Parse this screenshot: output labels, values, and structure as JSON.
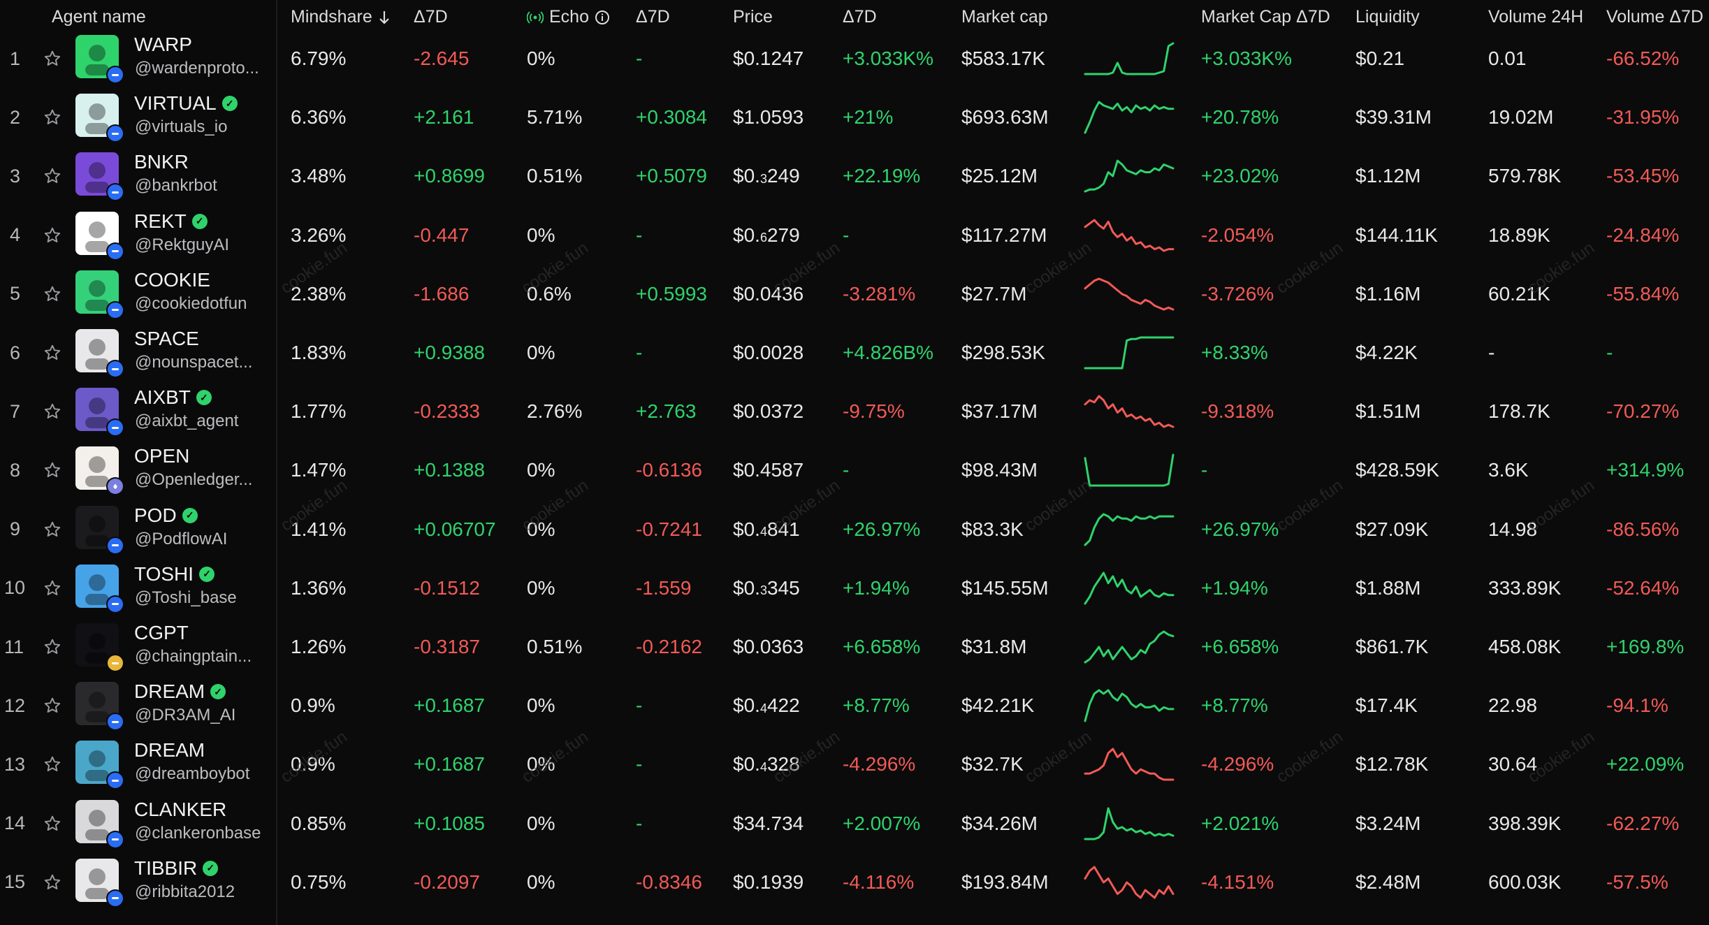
{
  "columns": {
    "agent_name": "Agent name",
    "mindshare": "Mindshare",
    "mindshare_d7": "Δ7D",
    "echo": "Echo",
    "echo_d7": "Δ7D",
    "price": "Price",
    "price_d7": "Δ7D",
    "market_cap": "Market cap",
    "market_cap_d7": "Market Cap Δ7D",
    "liquidity": "Liquidity",
    "volume_24h": "Volume 24H",
    "volume_d7": "Volume Δ7D"
  },
  "watermark_text": "cookie.fun",
  "colors": {
    "positive": "#2fd36b",
    "negative": "#f25a55",
    "chain_base": "#2a6df4"
  },
  "rows": [
    {
      "rank": "1",
      "name": "WARP",
      "handle": "@wardenproto...",
      "verified": false,
      "chain": "base",
      "mindshare": "6.79%",
      "mindshare_d7": "-2.645",
      "echo": "0%",
      "echo_d7": "-",
      "price": "$0.1247",
      "price_sub": "",
      "price_rest": "",
      "price_d7": "+3.033K%",
      "mcap": "$583.17K",
      "spark_trend": "up",
      "spark": [
        2,
        2,
        2,
        2,
        2,
        2,
        3,
        10,
        3,
        2,
        2,
        2,
        2,
        2,
        2,
        2,
        3,
        4,
        22,
        24
      ],
      "mcap_d7": "+3.033K%",
      "liquidity": "$0.21",
      "volume": "0.01",
      "volume_d7": "-66.52%"
    },
    {
      "rank": "2",
      "name": "VIRTUAL",
      "handle": "@virtuals_io",
      "verified": true,
      "chain": "base",
      "mindshare": "6.36%",
      "mindshare_d7": "+2.161",
      "echo": "5.71%",
      "echo_d7": "+0.3084",
      "price": "$1.0593",
      "price_sub": "",
      "price_rest": "",
      "price_d7": "+21%",
      "mcap": "$693.63M",
      "spark_trend": "up",
      "spark": [
        2,
        8,
        15,
        20,
        18,
        17,
        16,
        19,
        15,
        17,
        14,
        18,
        16,
        17,
        15,
        18,
        16,
        17,
        16,
        16
      ],
      "mcap_d7": "+20.78%",
      "liquidity": "$39.31M",
      "volume": "19.02M",
      "volume_d7": "-31.95%"
    },
    {
      "rank": "3",
      "name": "BNKR",
      "handle": "@bankrbot",
      "verified": false,
      "chain": "base",
      "mindshare": "3.48%",
      "mindshare_d7": "+0.8699",
      "echo": "0.51%",
      "echo_d7": "+0.5079",
      "price": "$0.",
      "price_sub": "3",
      "price_rest": "249",
      "price_d7": "+22.19%",
      "mcap": "$25.12M",
      "spark_trend": "up",
      "spark": [
        2,
        3,
        3,
        4,
        6,
        12,
        10,
        18,
        16,
        13,
        12,
        11,
        13,
        12,
        12,
        14,
        13,
        16,
        15,
        14
      ],
      "mcap_d7": "+23.02%",
      "liquidity": "$1.12M",
      "volume": "579.78K",
      "volume_d7": "-53.45%"
    },
    {
      "rank": "4",
      "name": "REKT",
      "handle": "@RektguyAI",
      "verified": true,
      "chain": "base",
      "mindshare": "3.26%",
      "mindshare_d7": "-0.447",
      "echo": "0%",
      "echo_d7": "-",
      "price": "$0.",
      "price_sub": "6",
      "price_rest": "279",
      "price_d7": "-",
      "mcap": "$117.27M",
      "spark_trend": "down",
      "spark": [
        18,
        20,
        22,
        19,
        17,
        21,
        15,
        12,
        14,
        10,
        12,
        8,
        9,
        6,
        7,
        5,
        6,
        4,
        5,
        5
      ],
      "mcap_d7": "-2.054%",
      "liquidity": "$144.11K",
      "volume": "18.89K",
      "volume_d7": "-24.84%"
    },
    {
      "rank": "5",
      "name": "COOKIE",
      "handle": "@cookiedotfun",
      "verified": false,
      "chain": "base",
      "mindshare": "2.38%",
      "mindshare_d7": "-1.686",
      "echo": "0.6%",
      "echo_d7": "+0.5993",
      "price": "$0.0436",
      "price_sub": "",
      "price_rest": "",
      "price_d7": "-3.281%",
      "mcap": "$27.7M",
      "spark_trend": "down",
      "spark": [
        16,
        18,
        20,
        21,
        20,
        19,
        17,
        15,
        13,
        12,
        10,
        9,
        8,
        10,
        9,
        7,
        6,
        5,
        6,
        5
      ],
      "mcap_d7": "-3.726%",
      "liquidity": "$1.16M",
      "volume": "60.21K",
      "volume_d7": "-55.84%"
    },
    {
      "rank": "6",
      "name": "SPACE",
      "handle": "@nounspacet...",
      "verified": false,
      "chain": "base",
      "mindshare": "1.83%",
      "mindshare_d7": "+0.9388",
      "echo": "0%",
      "echo_d7": "-",
      "price": "$0.0028",
      "price_sub": "",
      "price_rest": "",
      "price_d7": "+4.826B%",
      "mcap": "$298.53K",
      "spark_trend": "up",
      "spark": [
        2,
        2,
        2,
        2,
        2,
        2,
        2,
        2,
        2,
        20,
        21,
        21,
        22,
        22,
        22,
        22,
        22,
        22,
        22,
        22
      ],
      "mcap_d7": "+8.33%",
      "liquidity": "$4.22K",
      "volume": "-",
      "volume_d7": "-"
    },
    {
      "rank": "7",
      "name": "AIXBT",
      "handle": "@aixbt_agent",
      "verified": true,
      "chain": "base",
      "mindshare": "1.77%",
      "mindshare_d7": "-0.2333",
      "echo": "2.76%",
      "echo_d7": "+2.763",
      "price": "$0.0372",
      "price_sub": "",
      "price_rest": "",
      "price_d7": "-9.75%",
      "mcap": "$37.17M",
      "spark_trend": "down",
      "spark": [
        16,
        18,
        17,
        20,
        18,
        14,
        16,
        12,
        14,
        10,
        11,
        9,
        10,
        8,
        9,
        6,
        7,
        5,
        6,
        5
      ],
      "mcap_d7": "-9.318%",
      "liquidity": "$1.51M",
      "volume": "178.7K",
      "volume_d7": "-70.27%"
    },
    {
      "rank": "8",
      "name": "OPEN",
      "handle": "@Openledger...",
      "verified": false,
      "chain": "eth",
      "mindshare": "1.47%",
      "mindshare_d7": "+0.1388",
      "echo": "0%",
      "echo_d7": "-0.6136",
      "price": "$0.4587",
      "price_sub": "",
      "price_rest": "",
      "price_d7": "-",
      "mcap": "$98.43M",
      "spark_trend": "up",
      "spark": [
        20,
        3,
        3,
        3,
        3,
        3,
        3,
        3,
        3,
        3,
        3,
        3,
        3,
        3,
        3,
        3,
        3,
        3,
        4,
        22
      ],
      "mcap_d7": "-",
      "liquidity": "$428.59K",
      "volume": "3.6K",
      "volume_d7": "+314.9%"
    },
    {
      "rank": "9",
      "name": "POD",
      "handle": "@PodflowAI",
      "verified": true,
      "chain": "base",
      "mindshare": "1.41%",
      "mindshare_d7": "+0.06707",
      "echo": "0%",
      "echo_d7": "-0.7241",
      "price": "$0.",
      "price_sub": "4",
      "price_rest": "841",
      "price_d7": "+26.97%",
      "mcap": "$83.3K",
      "spark_trend": "up",
      "spark": [
        2,
        4,
        10,
        14,
        16,
        15,
        13,
        15,
        14,
        14,
        13,
        15,
        14,
        14,
        15,
        14,
        15,
        15,
        15,
        15
      ],
      "mcap_d7": "+26.97%",
      "liquidity": "$27.09K",
      "volume": "14.98",
      "volume_d7": "-86.56%"
    },
    {
      "rank": "10",
      "name": "TOSHI",
      "handle": "@Toshi_base",
      "verified": true,
      "chain": "base",
      "mindshare": "1.36%",
      "mindshare_d7": "-0.1512",
      "echo": "0%",
      "echo_d7": "-1.559",
      "price": "$0.",
      "price_sub": "3",
      "price_rest": "345",
      "price_d7": "+1.94%",
      "mcap": "$145.55M",
      "spark_trend": "up",
      "spark": [
        4,
        8,
        14,
        18,
        22,
        16,
        20,
        14,
        18,
        12,
        10,
        14,
        8,
        10,
        12,
        9,
        8,
        10,
        9,
        9
      ],
      "mcap_d7": "+1.94%",
      "liquidity": "$1.88M",
      "volume": "333.89K",
      "volume_d7": "-52.64%"
    },
    {
      "rank": "11",
      "name": "CGPT",
      "handle": "@chaingptain...",
      "verified": false,
      "chain": "sol",
      "mindshare": "1.26%",
      "mindshare_d7": "-0.3187",
      "echo": "0.51%",
      "echo_d7": "-0.2162",
      "price": "$0.0363",
      "price_sub": "",
      "price_rest": "",
      "price_d7": "+6.658%",
      "mcap": "$31.8M",
      "spark_trend": "up",
      "spark": [
        4,
        6,
        10,
        14,
        8,
        12,
        6,
        10,
        14,
        10,
        6,
        8,
        12,
        10,
        16,
        18,
        22,
        24,
        22,
        21
      ],
      "mcap_d7": "+6.658%",
      "liquidity": "$861.7K",
      "volume": "458.08K",
      "volume_d7": "+169.8%"
    },
    {
      "rank": "12",
      "name": "DREAM",
      "handle": "@DR3AM_AI",
      "verified": true,
      "chain": "base",
      "mindshare": "0.9%",
      "mindshare_d7": "+0.1687",
      "echo": "0%",
      "echo_d7": "-",
      "price": "$0.",
      "price_sub": "4",
      "price_rest": "422",
      "price_d7": "+8.77%",
      "mcap": "$42.21K",
      "spark_trend": "up",
      "spark": [
        4,
        14,
        20,
        22,
        20,
        22,
        18,
        16,
        20,
        18,
        14,
        12,
        14,
        12,
        12,
        13,
        10,
        12,
        11,
        11
      ],
      "mcap_d7": "+8.77%",
      "liquidity": "$17.4K",
      "volume": "22.98",
      "volume_d7": "-94.1%"
    },
    {
      "rank": "13",
      "name": "DREAM",
      "handle": "@dreamboybot",
      "verified": false,
      "chain": "base",
      "mindshare": "0.9%",
      "mindshare_d7": "+0.1687",
      "echo": "0%",
      "echo_d7": "-",
      "price": "$0.",
      "price_sub": "4",
      "price_rest": "328",
      "price_d7": "-4.296%",
      "mcap": "$32.7K",
      "spark_trend": "down",
      "spark": [
        8,
        8,
        9,
        10,
        12,
        18,
        20,
        16,
        18,
        14,
        10,
        8,
        10,
        9,
        8,
        8,
        6,
        5,
        5,
        5
      ],
      "mcap_d7": "-4.296%",
      "liquidity": "$12.78K",
      "volume": "30.64",
      "volume_d7": "+22.09%"
    },
    {
      "rank": "14",
      "name": "CLANKER",
      "handle": "@clankeronbase",
      "verified": false,
      "chain": "base",
      "mindshare": "0.85%",
      "mindshare_d7": "+0.1085",
      "echo": "0%",
      "echo_d7": "-",
      "price": "$34.734",
      "price_sub": "",
      "price_rest": "",
      "price_d7": "+2.007%",
      "mcap": "$34.26M",
      "spark_trend": "up",
      "spark": [
        4,
        4,
        4,
        5,
        8,
        22,
        14,
        10,
        11,
        9,
        10,
        8,
        9,
        7,
        8,
        6,
        7,
        6,
        7,
        6
      ],
      "mcap_d7": "+2.021%",
      "liquidity": "$3.24M",
      "volume": "398.39K",
      "volume_d7": "-62.27%"
    },
    {
      "rank": "15",
      "name": "TIBBIR",
      "handle": "@ribbita2012",
      "verified": true,
      "chain": "base",
      "mindshare": "0.75%",
      "mindshare_d7": "-0.2097",
      "echo": "0%",
      "echo_d7": "-0.8346",
      "price": "$0.1939",
      "price_sub": "",
      "price_rest": "",
      "price_d7": "-4.116%",
      "mcap": "$193.84M",
      "spark_trend": "down",
      "spark": [
        14,
        18,
        20,
        16,
        12,
        14,
        10,
        6,
        8,
        12,
        10,
        6,
        4,
        8,
        6,
        4,
        8,
        6,
        10,
        6
      ],
      "mcap_d7": "-4.151%",
      "liquidity": "$2.48M",
      "volume": "600.03K",
      "volume_d7": "-57.5%"
    }
  ]
}
